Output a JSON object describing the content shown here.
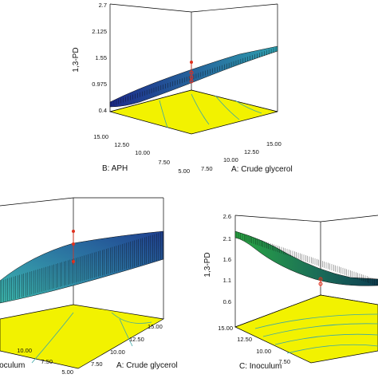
{
  "chart_data": [
    {
      "type": "surface3d",
      "zlabel": "1,3-PD",
      "xlabel": "A: Crude glycerol",
      "ylabel": "B: APH",
      "zticks": [
        "0.4",
        "0.975",
        "1.55",
        "2.125",
        "2.7"
      ],
      "xticks": [
        "5.00",
        "7.50",
        "10.00",
        "12.50",
        "15.00"
      ],
      "yticks": [
        "5.00",
        "7.50",
        "10.00",
        "12.50",
        "15.00"
      ],
      "xlim": [
        5,
        15
      ],
      "ylim": [
        5,
        15
      ],
      "zlim": [
        0.4,
        2.7
      ],
      "design_points_z": [
        1.5,
        1.62,
        1.7,
        1.85
      ],
      "colors": {
        "surface_low": "#1c2a8a",
        "surface_high": "#2f9fae",
        "contour_floor": "#f2f200",
        "design_point": "#e0301e"
      }
    },
    {
      "type": "surface3d",
      "zlabel": "",
      "xlabel": "A: Crude glycerol",
      "ylabel": "C: Inoculum",
      "zticks": [],
      "xticks": [
        "5.00",
        "7.50",
        "10.00",
        "12.50",
        "15.00"
      ],
      "yticks": [
        "5.00",
        "7.50",
        "10.00"
      ],
      "xlim": [
        5,
        15
      ],
      "ylim": [
        5,
        15
      ],
      "design_points_z": [
        1.6,
        1.95,
        2.1
      ],
      "colors": {
        "surface_low": "#1f3f8f",
        "surface_high": "#3dbbb0",
        "contour_floor": "#f2f200",
        "design_point": "#e0301e"
      }
    },
    {
      "type": "surface3d",
      "zlabel": "1,3-PD",
      "xlabel": "",
      "ylabel": "C: Inoculum",
      "zticks": [
        "0.6",
        "1.1",
        "1.6",
        "2.1",
        "2.6"
      ],
      "xticks": [],
      "yticks": [
        "7.50",
        "10.00",
        "12.50",
        "15.00"
      ],
      "xlim": [
        5,
        15
      ],
      "ylim": [
        5,
        15
      ],
      "zlim": [
        0.6,
        2.6
      ],
      "design_points_z": [
        1.0,
        1.06
      ],
      "colors": {
        "surface_low": "#0d3f52",
        "surface_high": "#2aa844",
        "contour_floor": "#f2f200",
        "design_point": "#e0301e"
      }
    }
  ]
}
